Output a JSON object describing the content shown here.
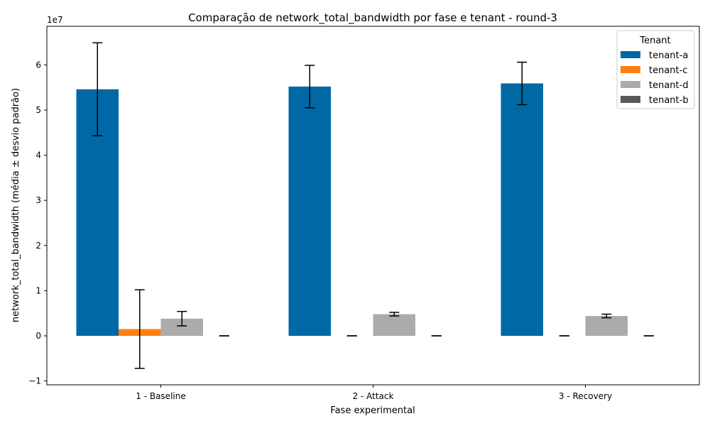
{
  "chart_data": {
    "type": "bar",
    "title": "Comparação de network_total_bandwidth por fase e tenant - round-3",
    "xlabel": "Fase experimental",
    "ylabel": "network_total_bandwidth (média ± desvio padrão)",
    "y_multiplier_label": "1e7",
    "ylim": [
      -1.2,
      6.85
    ],
    "yticks": [
      -1,
      0,
      1,
      2,
      3,
      4,
      5,
      6
    ],
    "categories": [
      "1 - Baseline",
      "2 - Attack",
      "3 - Recovery"
    ],
    "legend": {
      "title": "Tenant",
      "placement": "top-right"
    },
    "grid": false,
    "series": [
      {
        "name": "tenant-a",
        "color": "#0068a5",
        "values": [
          5.46,
          5.52,
          5.59
        ],
        "errors": [
          1.03,
          0.47,
          0.47
        ]
      },
      {
        "name": "tenant-c",
        "color": "#ff7f0e",
        "values": [
          0.15,
          0.0,
          0.0
        ],
        "errors": [
          0.87,
          0.0,
          0.0
        ]
      },
      {
        "name": "tenant-d",
        "color": "#ababab",
        "values": [
          0.38,
          0.48,
          0.44
        ],
        "errors": [
          0.16,
          0.04,
          0.04
        ]
      },
      {
        "name": "tenant-b",
        "color": "#595959",
        "values": [
          0.0,
          0.0,
          0.0
        ],
        "errors": [
          0.0,
          0.0,
          0.0
        ]
      }
    ]
  }
}
